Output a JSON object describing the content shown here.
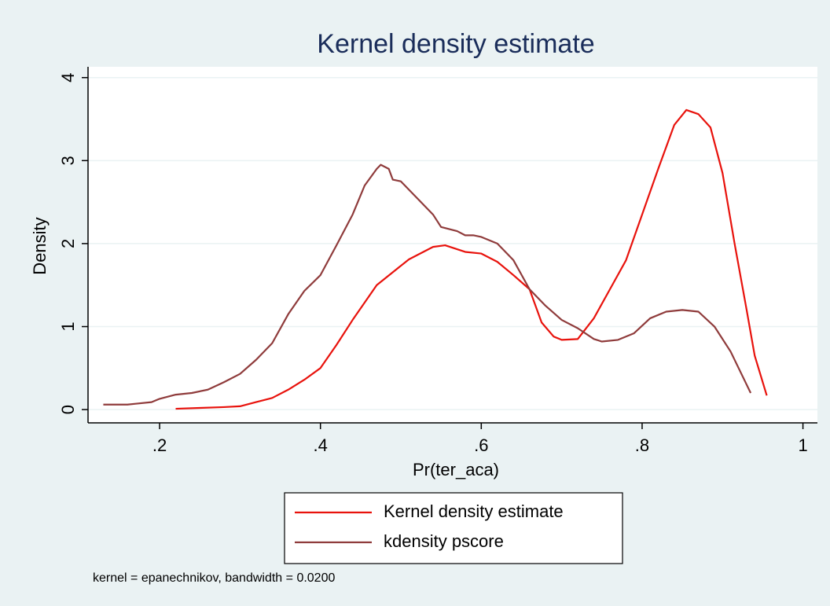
{
  "chart_data": {
    "type": "line",
    "title": "Kernel density estimate",
    "xlabel": "Pr(ter_aca)",
    "ylabel": "Density",
    "note": "kernel = epanechnikov, bandwidth = 0.0200",
    "xlim": [
      0.111,
      1.018
    ],
    "ylim": [
      -0.16,
      4.13
    ],
    "xticks": [
      {
        "value": 0.2,
        "label": ".2"
      },
      {
        "value": 0.4,
        "label": ".4"
      },
      {
        "value": 0.6,
        "label": ".6"
      },
      {
        "value": 0.8,
        "label": ".8"
      },
      1
    ],
    "yticks": [
      0,
      1,
      2,
      3,
      4
    ],
    "grid": true,
    "legend": "bottom",
    "series": [
      {
        "name": "Kernel density estimate",
        "color": "#e8120c",
        "x": [
          0.22,
          0.25,
          0.28,
          0.3,
          0.32,
          0.34,
          0.36,
          0.38,
          0.4,
          0.42,
          0.44,
          0.47,
          0.51,
          0.54,
          0.555,
          0.58,
          0.6,
          0.62,
          0.64,
          0.66,
          0.675,
          0.69,
          0.7,
          0.72,
          0.74,
          0.76,
          0.78,
          0.8,
          0.82,
          0.84,
          0.855,
          0.87,
          0.885,
          0.9,
          0.915,
          0.93,
          0.94,
          0.955
        ],
        "values": [
          0.01,
          0.02,
          0.03,
          0.04,
          0.09,
          0.14,
          0.24,
          0.36,
          0.5,
          0.78,
          1.08,
          1.5,
          1.81,
          1.96,
          1.98,
          1.9,
          1.88,
          1.78,
          1.62,
          1.45,
          1.05,
          0.88,
          0.84,
          0.85,
          1.1,
          1.45,
          1.8,
          2.35,
          2.9,
          3.43,
          3.61,
          3.56,
          3.4,
          2.85,
          2.0,
          1.2,
          0.65,
          0.17
        ]
      },
      {
        "name": "kdensity pscore",
        "color": "#8f3b3b",
        "x": [
          0.13,
          0.16,
          0.17,
          0.19,
          0.2,
          0.22,
          0.24,
          0.26,
          0.28,
          0.3,
          0.32,
          0.34,
          0.36,
          0.38,
          0.4,
          0.42,
          0.44,
          0.455,
          0.47,
          0.475,
          0.485,
          0.49,
          0.5,
          0.52,
          0.54,
          0.55,
          0.57,
          0.58,
          0.59,
          0.6,
          0.62,
          0.64,
          0.66,
          0.68,
          0.7,
          0.72,
          0.74,
          0.75,
          0.77,
          0.79,
          0.81,
          0.83,
          0.85,
          0.87,
          0.89,
          0.91,
          0.93,
          0.935
        ],
        "values": [
          0.06,
          0.06,
          0.07,
          0.09,
          0.13,
          0.18,
          0.2,
          0.24,
          0.33,
          0.43,
          0.6,
          0.8,
          1.15,
          1.43,
          1.62,
          1.98,
          2.35,
          2.7,
          2.9,
          2.95,
          2.9,
          2.77,
          2.75,
          2.55,
          2.35,
          2.2,
          2.15,
          2.1,
          2.1,
          2.08,
          2.0,
          1.8,
          1.45,
          1.25,
          1.08,
          0.98,
          0.85,
          0.82,
          0.84,
          0.92,
          1.1,
          1.18,
          1.2,
          1.18,
          1.0,
          0.7,
          0.3,
          0.2
        ]
      }
    ]
  }
}
